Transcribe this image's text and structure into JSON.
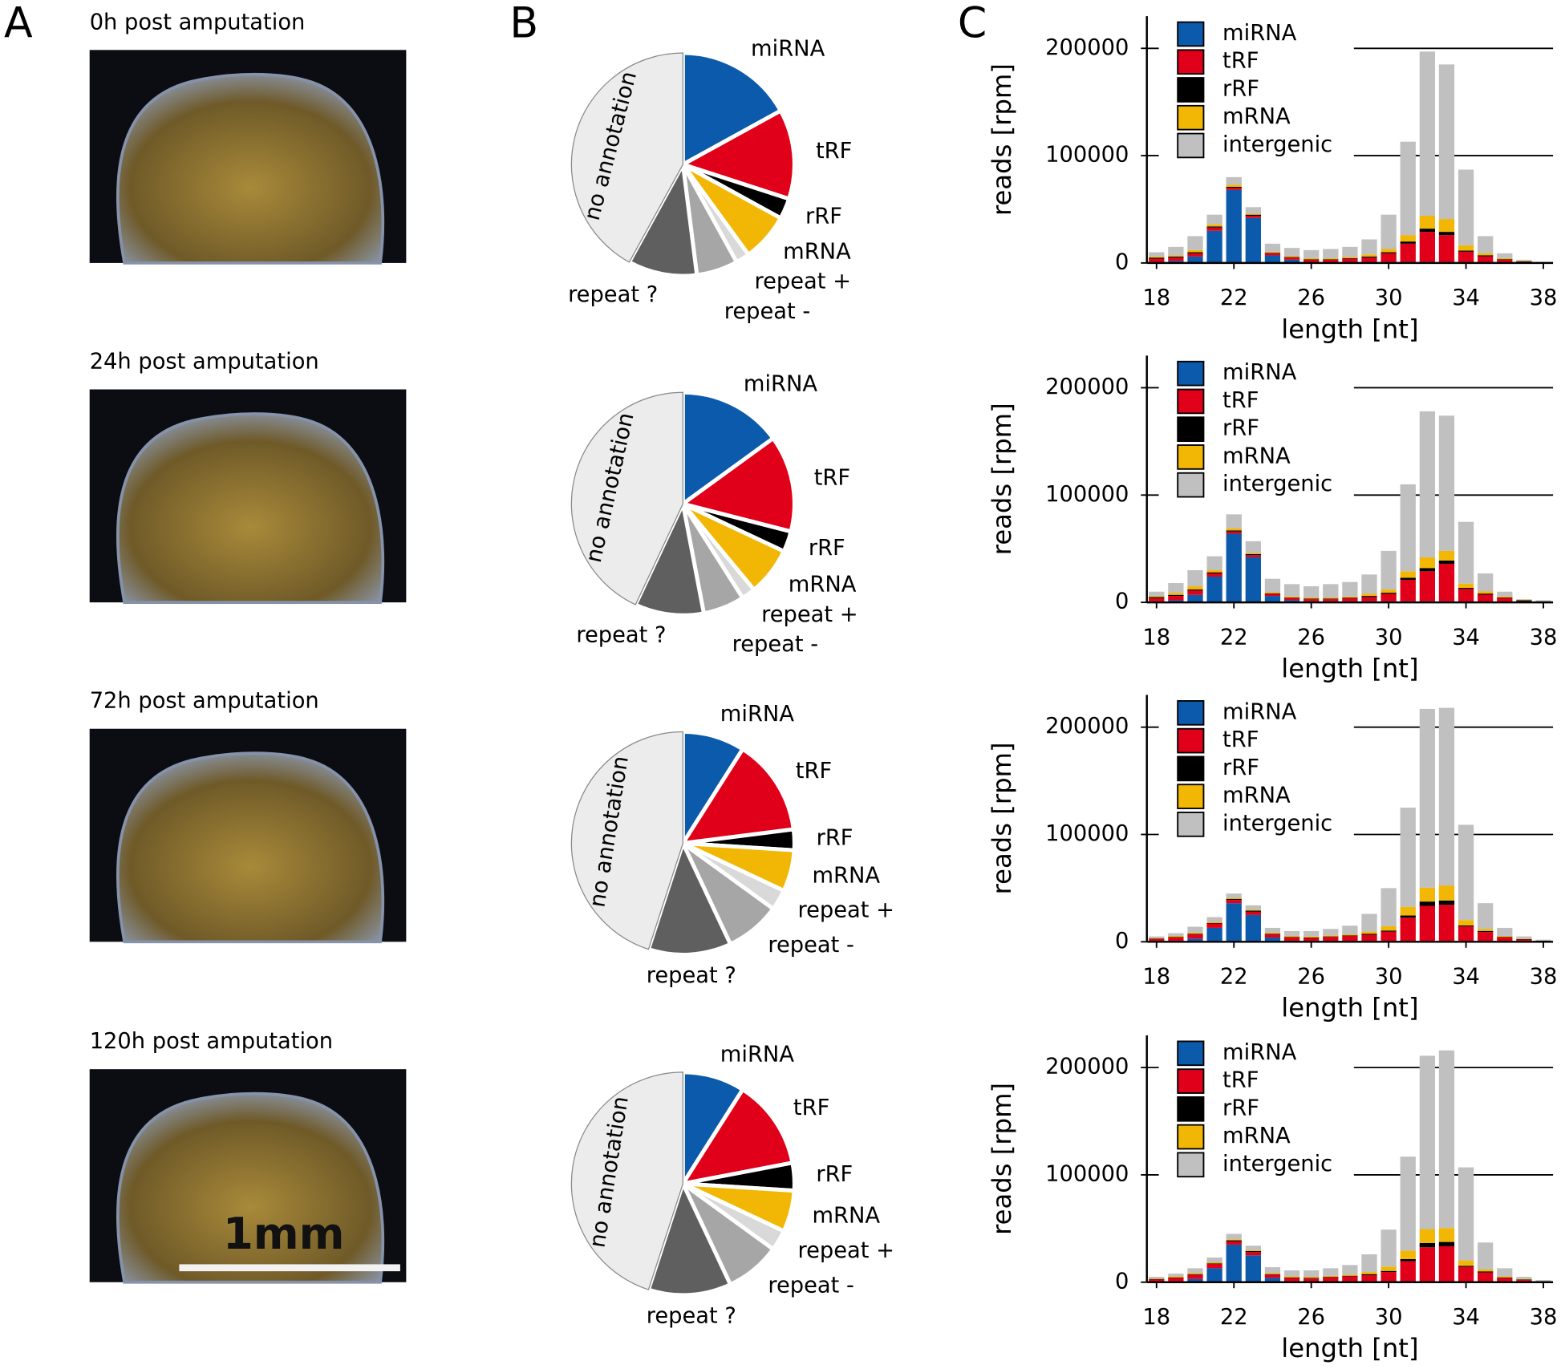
{
  "panel_labels": [
    "A",
    "B",
    "C"
  ],
  "captions": [
    "0h post amputation",
    "24h post amputation",
    "72h post amputation",
    "120h post amputation"
  ],
  "scale_bar": "1mm",
  "chart_data": [
    {
      "type": "pie",
      "categories": [
        "miRNA",
        "tRF",
        "rRF",
        "mRNA",
        "repeat +",
        "repeat -",
        "repeat ?",
        "no annotation"
      ],
      "values": [
        17,
        13,
        3,
        7,
        2,
        6,
        10,
        42
      ],
      "colors": [
        "#0b5aab",
        "#e00019",
        "#000000",
        "#f2b705",
        "#d9d9d9",
        "#a6a6a6",
        "#5f5f5f",
        "#ececec"
      ]
    },
    {
      "type": "pie",
      "categories": [
        "miRNA",
        "tRF",
        "rRF",
        "mRNA",
        "repeat +",
        "repeat -",
        "repeat ?",
        "no annotation"
      ],
      "values": [
        15,
        14,
        3,
        7,
        2,
        6,
        10,
        43
      ],
      "colors": [
        "#0b5aab",
        "#e00019",
        "#000000",
        "#f2b705",
        "#d9d9d9",
        "#a6a6a6",
        "#5f5f5f",
        "#ececec"
      ]
    },
    {
      "type": "pie",
      "categories": [
        "miRNA",
        "tRF",
        "rRF",
        "mRNA",
        "repeat +",
        "repeat -",
        "repeat ?",
        "no annotation"
      ],
      "values": [
        9,
        14,
        3,
        6,
        3,
        8,
        12,
        45
      ],
      "colors": [
        "#0b5aab",
        "#e00019",
        "#000000",
        "#f2b705",
        "#d9d9d9",
        "#a6a6a6",
        "#5f5f5f",
        "#ececec"
      ]
    },
    {
      "type": "pie",
      "categories": [
        "miRNA",
        "tRF",
        "rRF",
        "mRNA",
        "repeat +",
        "repeat -",
        "repeat ?",
        "no annotation"
      ],
      "values": [
        9,
        13,
        4,
        6,
        3,
        8,
        12,
        45
      ],
      "colors": [
        "#0b5aab",
        "#e00019",
        "#000000",
        "#f2b705",
        "#d9d9d9",
        "#a6a6a6",
        "#5f5f5f",
        "#ececec"
      ]
    },
    {
      "type": "bar",
      "stacked": true,
      "xlabel": "length [nt]",
      "ylabel": "reads [rpm]",
      "grid": true,
      "legend": "top-left",
      "x": [
        18,
        19,
        20,
        21,
        22,
        23,
        24,
        25,
        26,
        27,
        28,
        29,
        30,
        31,
        32,
        33,
        34,
        35,
        36,
        37,
        38
      ],
      "xlim": [
        17.5,
        38.5
      ],
      "xticks": [
        18,
        22,
        26,
        30,
        34,
        38
      ],
      "ylim": [
        0,
        230000
      ],
      "yticks": [
        0,
        100000,
        200000
      ],
      "series": [
        {
          "name": "miRNA",
          "color": "#0b5aab",
          "values": [
            1000,
            2000,
            6000,
            30000,
            68000,
            42000,
            7000,
            3000,
            1000,
            1000,
            1000,
            1000,
            1000,
            1000,
            1000,
            1000,
            500,
            200,
            100,
            0,
            0
          ]
        },
        {
          "name": "tRF",
          "color": "#e00019",
          "values": [
            3000,
            3000,
            3000,
            3000,
            2000,
            2000,
            2000,
            2000,
            2000,
            2000,
            3000,
            4000,
            8000,
            17000,
            28000,
            25000,
            10000,
            6000,
            3000,
            1000,
            0
          ]
        },
        {
          "name": "rRF",
          "color": "#000000",
          "values": [
            1000,
            1000,
            1000,
            1000,
            1000,
            1000,
            500,
            500,
            500,
            500,
            500,
            1000,
            1000,
            2000,
            3000,
            3000,
            1000,
            1000,
            500,
            500,
            500
          ]
        },
        {
          "name": "mRNA",
          "color": "#f2b705",
          "values": [
            1000,
            1000,
            2000,
            2000,
            2000,
            1000,
            1000,
            1000,
            1000,
            1000,
            1000,
            2000,
            3000,
            6000,
            12000,
            12000,
            5000,
            2000,
            1000,
            500,
            0
          ]
        },
        {
          "name": "intergenic",
          "color": "#c0c0c0",
          "values": [
            4000,
            8000,
            13000,
            9000,
            7000,
            6000,
            7500,
            7500,
            7500,
            8500,
            9500,
            14000,
            32000,
            87000,
            153000,
            144000,
            70500,
            15800,
            4400,
            1000,
            500
          ]
        }
      ]
    },
    {
      "type": "bar",
      "stacked": true,
      "xlabel": "length [nt]",
      "ylabel": "reads [rpm]",
      "grid": true,
      "legend": "top-left",
      "x": [
        18,
        19,
        20,
        21,
        22,
        23,
        24,
        25,
        26,
        27,
        28,
        29,
        30,
        31,
        32,
        33,
        34,
        35,
        36,
        37,
        38
      ],
      "xlim": [
        17.5,
        38.5
      ],
      "xticks": [
        18,
        22,
        26,
        30,
        34,
        38
      ],
      "ylim": [
        0,
        230000
      ],
      "yticks": [
        0,
        100000,
        200000
      ],
      "series": [
        {
          "name": "miRNA",
          "color": "#0b5aab",
          "values": [
            1000,
            2000,
            7000,
            24000,
            64000,
            42000,
            6000,
            2000,
            1000,
            1000,
            1000,
            1000,
            1000,
            1000,
            1000,
            1000,
            500,
            200,
            100,
            0,
            0
          ]
        },
        {
          "name": "tRF",
          "color": "#e00019",
          "values": [
            3000,
            4000,
            4000,
            3000,
            2000,
            2000,
            2000,
            2000,
            2000,
            2000,
            3000,
            4000,
            7000,
            20000,
            28000,
            35000,
            12000,
            7000,
            4000,
            1000,
            500
          ]
        },
        {
          "name": "rRF",
          "color": "#000000",
          "values": [
            1000,
            1000,
            1000,
            1000,
            1000,
            1000,
            500,
            500,
            500,
            500,
            500,
            1000,
            1000,
            2000,
            3000,
            3000,
            1000,
            1000,
            500,
            1000,
            500
          ]
        },
        {
          "name": "mRNA",
          "color": "#f2b705",
          "values": [
            1000,
            2000,
            3000,
            2000,
            2000,
            1000,
            1000,
            1000,
            1000,
            1000,
            1000,
            2000,
            3000,
            6000,
            10000,
            9000,
            4000,
            2000,
            1000,
            500,
            0
          ]
        },
        {
          "name": "intergenic",
          "color": "#c0c0c0",
          "values": [
            4000,
            9000,
            15000,
            13000,
            13000,
            11000,
            12500,
            11500,
            10500,
            12500,
            13500,
            18000,
            36000,
            81000,
            136000,
            126000,
            57500,
            16800,
            4400,
            500,
            1000
          ]
        }
      ]
    },
    {
      "type": "bar",
      "stacked": true,
      "xlabel": "length [nt]",
      "ylabel": "reads [rpm]",
      "grid": true,
      "legend": "top-left",
      "x": [
        18,
        19,
        20,
        21,
        22,
        23,
        24,
        25,
        26,
        27,
        28,
        29,
        30,
        31,
        32,
        33,
        34,
        35,
        36,
        37,
        38
      ],
      "xlim": [
        17.5,
        38.5
      ],
      "xticks": [
        18,
        22,
        26,
        30,
        34,
        38
      ],
      "ylim": [
        0,
        230000
      ],
      "yticks": [
        0,
        100000,
        200000
      ],
      "series": [
        {
          "name": "miRNA",
          "color": "#0b5aab",
          "values": [
            500,
            1000,
            3000,
            13000,
            36000,
            25000,
            4000,
            1000,
            500,
            500,
            500,
            500,
            500,
            500,
            500,
            500,
            300,
            100,
            0,
            0,
            0
          ]
        },
        {
          "name": "tRF",
          "color": "#e00019",
          "values": [
            2000,
            3000,
            4000,
            4000,
            3000,
            3000,
            3000,
            3000,
            3000,
            4000,
            5000,
            6000,
            9000,
            22000,
            33000,
            34000,
            14000,
            9000,
            4000,
            2000,
            500
          ]
        },
        {
          "name": "rRF",
          "color": "#000000",
          "values": [
            500,
            500,
            500,
            500,
            1000,
            1000,
            500,
            500,
            500,
            500,
            500,
            1000,
            1000,
            2000,
            4000,
            4000,
            1000,
            1000,
            500,
            500,
            500
          ]
        },
        {
          "name": "mRNA",
          "color": "#f2b705",
          "values": [
            500,
            1000,
            1000,
            1000,
            1000,
            1000,
            1000,
            1000,
            1000,
            1000,
            1000,
            2000,
            4000,
            8000,
            13000,
            14000,
            5000,
            2000,
            1000,
            500,
            0
          ]
        },
        {
          "name": "intergenic",
          "color": "#c0c0c0",
          "values": [
            1500,
            2500,
            5500,
            4500,
            4000,
            4000,
            4500,
            4500,
            5000,
            6000,
            8000,
            16500,
            35500,
            92500,
            166500,
            165500,
            88700,
            23900,
            7500,
            2000,
            1000
          ]
        }
      ]
    },
    {
      "type": "bar",
      "stacked": true,
      "xlabel": "length [nt]",
      "ylabel": "reads [rpm]",
      "grid": true,
      "legend": "top-left",
      "x": [
        18,
        19,
        20,
        21,
        22,
        23,
        24,
        25,
        26,
        27,
        28,
        29,
        30,
        31,
        32,
        33,
        34,
        35,
        36,
        37,
        38
      ],
      "xlim": [
        17.5,
        38.5
      ],
      "xticks": [
        18,
        22,
        26,
        30,
        34,
        38
      ],
      "ylim": [
        0,
        230000
      ],
      "yticks": [
        0,
        100000,
        200000
      ],
      "series": [
        {
          "name": "miRNA",
          "color": "#0b5aab",
          "values": [
            500,
            1000,
            3000,
            13000,
            35000,
            25000,
            4000,
            1000,
            500,
            500,
            500,
            500,
            500,
            500,
            500,
            500,
            300,
            100,
            0,
            0,
            0
          ]
        },
        {
          "name": "tRF",
          "color": "#e00019",
          "values": [
            2000,
            3000,
            4000,
            4000,
            3000,
            3000,
            3000,
            3000,
            3000,
            4000,
            5000,
            6000,
            9000,
            19000,
            32000,
            33000,
            14000,
            9000,
            4000,
            2000,
            500
          ]
        },
        {
          "name": "rRF",
          "color": "#000000",
          "values": [
            500,
            500,
            500,
            500,
            1000,
            1000,
            500,
            500,
            500,
            500,
            500,
            1000,
            1000,
            2000,
            4000,
            4000,
            1000,
            1000,
            500,
            500,
            500
          ]
        },
        {
          "name": "mRNA",
          "color": "#f2b705",
          "values": [
            500,
            1000,
            1000,
            1000,
            1000,
            1000,
            1000,
            1000,
            1000,
            1000,
            1000,
            2000,
            4000,
            8000,
            13000,
            13000,
            5000,
            2000,
            1000,
            500,
            0
          ]
        },
        {
          "name": "intergenic",
          "color": "#c0c0c0",
          "values": [
            1500,
            2500,
            4500,
            4500,
            5000,
            4000,
            5500,
            5500,
            6000,
            7000,
            9000,
            16500,
            34500,
            87500,
            161500,
            165500,
            86700,
            24900,
            7500,
            2000,
            1000
          ]
        }
      ]
    }
  ]
}
